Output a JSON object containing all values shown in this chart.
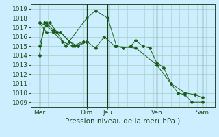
{
  "xlabel": "Pression niveau de la mer( hPa )",
  "background_color": "#cceeff",
  "grid_color": "#aad4cc",
  "line_color": "#1a5c1a",
  "vline_color": "#1a3a1a",
  "ylim": [
    1008.5,
    1019.5
  ],
  "xlim": [
    0,
    10.5
  ],
  "yticks": [
    1009,
    1010,
    1011,
    1012,
    1013,
    1014,
    1015,
    1016,
    1017,
    1018,
    1019
  ],
  "xtick_labels": [
    "Mer",
    "Dim",
    "Jeu",
    "Ven",
    "Sam"
  ],
  "xtick_positions": [
    0.5,
    3.2,
    4.4,
    7.2,
    9.8
  ],
  "vlines": [
    0.5,
    3.2,
    4.4,
    7.2,
    9.8
  ],
  "series": [
    [
      1014.0,
      1017.5,
      1017.5,
      1016.5,
      1015.0,
      1018.0,
      1018.8,
      1018.0,
      1015.0,
      1014.8,
      1015.0,
      1015.6,
      1015.0,
      1014.8,
      1013.2,
      1012.7,
      1011.0,
      1010.0,
      1009.8,
      1009.0,
      1009.0
    ],
    [
      1015.0,
      1017.5,
      1016.7,
      1016.5,
      1015.0,
      1015.5,
      1014.8,
      1016.0,
      1015.0,
      1014.8,
      1013.0,
      1011.0,
      1010.0,
      1009.8,
      1009.5
    ],
    [
      1017.5,
      1017.2,
      1016.5,
      1016.5,
      1015.5,
      1015.0,
      1015.5
    ],
    [
      1017.5,
      1016.5,
      1016.5,
      1015.5,
      1015.0,
      1015.5
    ]
  ],
  "series_x": [
    [
      0.5,
      0.8,
      1.1,
      1.5,
      2.0,
      3.2,
      3.7,
      4.4,
      4.9,
      5.3,
      5.7,
      6.0,
      6.4,
      6.8,
      7.2,
      7.6,
      8.0,
      8.4,
      8.8,
      9.2,
      9.8
    ],
    [
      0.5,
      0.9,
      1.3,
      1.7,
      2.5,
      3.2,
      3.7,
      4.2,
      4.8,
      6.0,
      7.2,
      8.0,
      8.8,
      9.4,
      9.8
    ],
    [
      0.5,
      0.9,
      1.3,
      1.7,
      2.2,
      2.7,
      3.2
    ],
    [
      0.5,
      0.9,
      1.3,
      1.8,
      2.4,
      3.0
    ]
  ],
  "xlabel_fontsize": 7.5,
  "tick_fontsize": 6.5
}
